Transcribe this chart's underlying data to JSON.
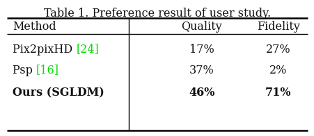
{
  "title": "Table 1. Preference result of user study.",
  "col_headers": [
    "Method",
    "Quality",
    "Fidelity"
  ],
  "rows": [
    {
      "method_prefix": "Pix2pixHD ",
      "method_cite": "[24]",
      "quality": "17%",
      "fidelity": "27%",
      "bold": false
    },
    {
      "method_prefix": "Psp ",
      "method_cite": "[16]",
      "quality": "37%",
      "fidelity": "2%",
      "bold": false
    },
    {
      "method_prefix": "Ours (SGLDM)",
      "method_cite": "",
      "quality": "46%",
      "fidelity": "71%",
      "bold": true
    }
  ],
  "cite_color": "#00dd00",
  "bg_color": "#ffffff",
  "text_color": "#111111",
  "title_fontsize": 11.5,
  "header_fontsize": 11.5,
  "body_fontsize": 11.5
}
